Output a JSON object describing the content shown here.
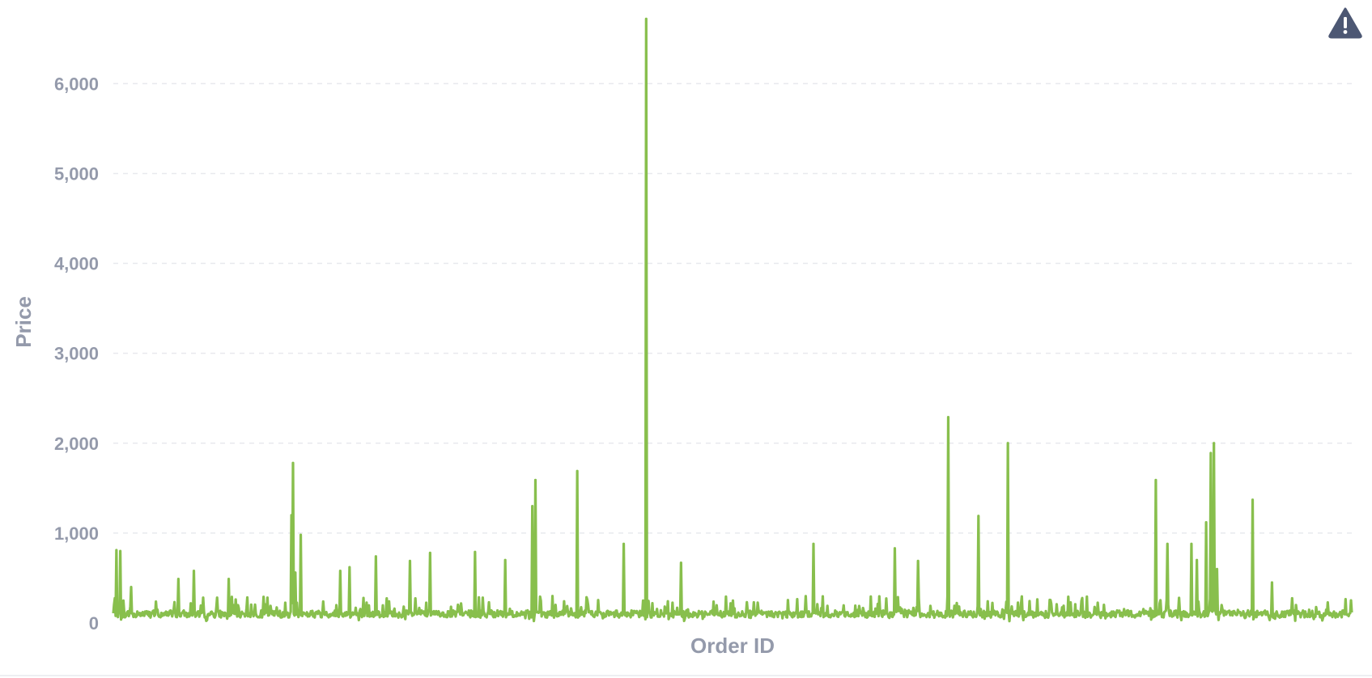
{
  "chart_data": {
    "type": "line",
    "title": "",
    "xlabel": "Order ID",
    "ylabel": "Price",
    "ylim": [
      0,
      6750
    ],
    "yticks": [
      0,
      1000,
      2000,
      3000,
      4000,
      5000,
      6000
    ],
    "ytick_labels": [
      "0",
      "1,000",
      "2,000",
      "3,000",
      "4,000",
      "5,000",
      "6,000"
    ],
    "grid": true,
    "legend": "none",
    "x_count": 1600,
    "x_start": 1,
    "baseline_range": [
      20,
      300
    ],
    "series": [
      {
        "color": "#88bf4d",
        "peaks": [
          {
            "x": 5,
            "y": 810
          },
          {
            "x": 10,
            "y": 800
          },
          {
            "x": 24,
            "y": 400
          },
          {
            "x": 85,
            "y": 490
          },
          {
            "x": 105,
            "y": 580
          },
          {
            "x": 150,
            "y": 490
          },
          {
            "x": 231,
            "y": 1200
          },
          {
            "x": 233,
            "y": 1780
          },
          {
            "x": 236,
            "y": 560
          },
          {
            "x": 243,
            "y": 980
          },
          {
            "x": 294,
            "y": 580
          },
          {
            "x": 306,
            "y": 620
          },
          {
            "x": 340,
            "y": 740
          },
          {
            "x": 384,
            "y": 690
          },
          {
            "x": 410,
            "y": 780
          },
          {
            "x": 468,
            "y": 790
          },
          {
            "x": 507,
            "y": 700
          },
          {
            "x": 542,
            "y": 1300
          },
          {
            "x": 546,
            "y": 1590
          },
          {
            "x": 600,
            "y": 1690
          },
          {
            "x": 660,
            "y": 880
          },
          {
            "x": 689,
            "y": 6720
          },
          {
            "x": 734,
            "y": 670
          },
          {
            "x": 905,
            "y": 880
          },
          {
            "x": 1010,
            "y": 830
          },
          {
            "x": 1040,
            "y": 690
          },
          {
            "x": 1079,
            "y": 2290
          },
          {
            "x": 1118,
            "y": 1190
          },
          {
            "x": 1156,
            "y": 2000
          },
          {
            "x": 1347,
            "y": 1590
          },
          {
            "x": 1362,
            "y": 880
          },
          {
            "x": 1393,
            "y": 880
          },
          {
            "x": 1400,
            "y": 700
          },
          {
            "x": 1412,
            "y": 1120
          },
          {
            "x": 1418,
            "y": 1890
          },
          {
            "x": 1422,
            "y": 2000
          },
          {
            "x": 1426,
            "y": 600
          },
          {
            "x": 1472,
            "y": 1370
          },
          {
            "x": 1497,
            "y": 450
          }
        ]
      }
    ]
  },
  "ui": {
    "warning_icon": "warning-icon",
    "warning_color": "#4c5773"
  }
}
